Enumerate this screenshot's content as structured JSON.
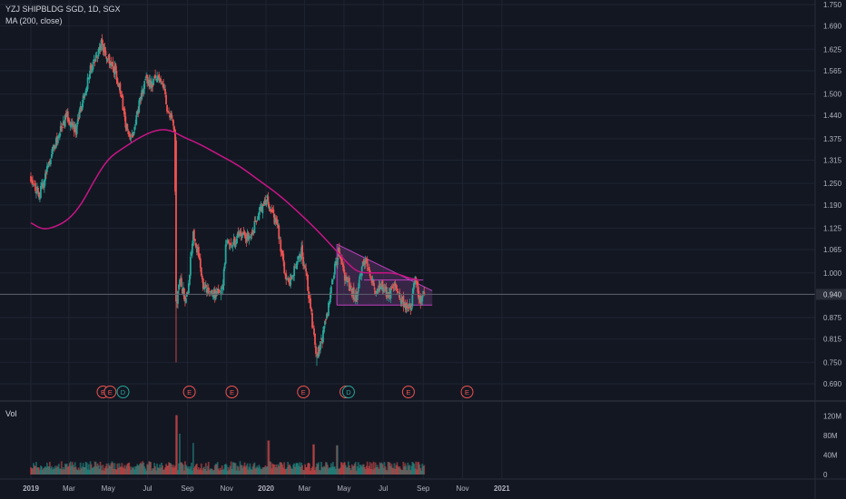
{
  "legend": {
    "symbol_line": "YZJ SHIPBLDG SGD, 1D, SGX",
    "indicator_line": "MA (200, close)",
    "volume_label": "Vol"
  },
  "colors": {
    "background": "#131722",
    "grid": "#1f2433",
    "up": "#26a69a",
    "down": "#ef5350",
    "ma": "#c71585",
    "pattern_fill": "#7b3f8a",
    "pattern_line": "#c040c0",
    "axis_text": "#b2b5be",
    "hline": "#5d606b"
  },
  "chart_data": {
    "type": "candlestick",
    "title": "YZJ SHIPBLDG SGD, 1D, SGX",
    "x_tick_labels": [
      "2019",
      "Mar",
      "May",
      "Jul",
      "Sep",
      "Nov",
      "2020",
      "Mar",
      "May",
      "Jul",
      "Sep",
      "Nov",
      "2021"
    ],
    "x_tick_dates": [
      "2019-01-01",
      "2019-03-01",
      "2019-05-01",
      "2019-07-01",
      "2019-09-01",
      "2019-11-01",
      "2020-01-01",
      "2020-03-01",
      "2020-05-01",
      "2020-07-01",
      "2020-09-01",
      "2020-11-01",
      "2021-01-01"
    ],
    "y_tick_labels": [
      "1.750",
      "1.690",
      "1.625",
      "1.565",
      "1.500",
      "1.440",
      "1.375",
      "1.315",
      "1.250",
      "1.190",
      "1.125",
      "1.065",
      "1.000",
      "0.940",
      "0.875",
      "0.815",
      "0.750",
      "0.690"
    ],
    "ylim": [
      0.69,
      1.75
    ],
    "price_path": [
      [
        "2019-01-01",
        1.27
      ],
      [
        "2019-01-08",
        1.24
      ],
      [
        "2019-01-15",
        1.22
      ],
      [
        "2019-01-22",
        1.26
      ],
      [
        "2019-02-01",
        1.33
      ],
      [
        "2019-02-12",
        1.38
      ],
      [
        "2019-02-25",
        1.44
      ],
      [
        "2019-03-05",
        1.42
      ],
      [
        "2019-03-12",
        1.4
      ],
      [
        "2019-03-20",
        1.46
      ],
      [
        "2019-04-01",
        1.56
      ],
      [
        "2019-04-12",
        1.6
      ],
      [
        "2019-04-20",
        1.64
      ],
      [
        "2019-04-28",
        1.61
      ],
      [
        "2019-05-06",
        1.59
      ],
      [
        "2019-05-14",
        1.55
      ],
      [
        "2019-05-22",
        1.48
      ],
      [
        "2019-06-01",
        1.38
      ],
      [
        "2019-06-08",
        1.39
      ],
      [
        "2019-06-18",
        1.47
      ],
      [
        "2019-06-28",
        1.54
      ],
      [
        "2019-07-08",
        1.53
      ],
      [
        "2019-07-18",
        1.55
      ],
      [
        "2019-07-25",
        1.53
      ],
      [
        "2019-08-01",
        1.46
      ],
      [
        "2019-08-08",
        1.42
      ],
      [
        "2019-08-12",
        1.38
      ],
      [
        "2019-08-15",
        0.9
      ],
      [
        "2019-08-20",
        0.98
      ],
      [
        "2019-08-28",
        0.93
      ],
      [
        "2019-09-02",
        0.96
      ],
      [
        "2019-09-10",
        1.12
      ],
      [
        "2019-09-18",
        1.05
      ],
      [
        "2019-09-26",
        0.96
      ],
      [
        "2019-10-05",
        0.95
      ],
      [
        "2019-10-15",
        0.94
      ],
      [
        "2019-10-25",
        0.95
      ],
      [
        "2019-11-01",
        1.1
      ],
      [
        "2019-11-12",
        1.08
      ],
      [
        "2019-11-22",
        1.11
      ],
      [
        "2019-12-02",
        1.1
      ],
      [
        "2019-12-12",
        1.12
      ],
      [
        "2019-12-22",
        1.17
      ],
      [
        "2020-01-01",
        1.21
      ],
      [
        "2020-01-10",
        1.17
      ],
      [
        "2020-01-20",
        1.12
      ],
      [
        "2020-01-28",
        1.02
      ],
      [
        "2020-02-05",
        0.97
      ],
      [
        "2020-02-15",
        1.01
      ],
      [
        "2020-02-25",
        1.06
      ],
      [
        "2020-03-05",
        0.97
      ],
      [
        "2020-03-12",
        0.87
      ],
      [
        "2020-03-19",
        0.76
      ],
      [
        "2020-03-26",
        0.8
      ],
      [
        "2020-04-05",
        0.88
      ],
      [
        "2020-04-15",
        1.0
      ],
      [
        "2020-04-22",
        1.06
      ],
      [
        "2020-04-30",
        1.0
      ],
      [
        "2020-05-10",
        0.96
      ],
      [
        "2020-05-20",
        0.93
      ],
      [
        "2020-06-01",
        1.04
      ],
      [
        "2020-06-08",
        1.01
      ],
      [
        "2020-06-18",
        0.95
      ],
      [
        "2020-06-28",
        0.97
      ],
      [
        "2020-07-08",
        0.93
      ],
      [
        "2020-07-18",
        0.96
      ],
      [
        "2020-07-28",
        0.93
      ],
      [
        "2020-08-05",
        0.91
      ],
      [
        "2020-08-12",
        0.9
      ],
      [
        "2020-08-20",
        0.98
      ],
      [
        "2020-08-27",
        0.92
      ],
      [
        "2020-09-03",
        0.94
      ]
    ],
    "ma_200": [
      [
        "2019-01-01",
        1.14
      ],
      [
        "2019-01-20",
        1.12
      ],
      [
        "2019-02-10",
        1.13
      ],
      [
        "2019-03-01",
        1.15
      ],
      [
        "2019-03-20",
        1.19
      ],
      [
        "2019-04-10",
        1.26
      ],
      [
        "2019-05-01",
        1.32
      ],
      [
        "2019-05-25",
        1.35
      ],
      [
        "2019-06-20",
        1.38
      ],
      [
        "2019-07-15",
        1.4
      ],
      [
        "2019-08-05",
        1.4
      ],
      [
        "2019-08-25",
        1.38
      ],
      [
        "2019-09-20",
        1.36
      ],
      [
        "2019-10-20",
        1.33
      ],
      [
        "2019-11-20",
        1.3
      ],
      [
        "2019-12-20",
        1.26
      ],
      [
        "2020-01-20",
        1.22
      ],
      [
        "2020-02-20",
        1.17
      ],
      [
        "2020-03-20",
        1.12
      ],
      [
        "2020-04-20",
        1.06
      ],
      [
        "2020-05-10",
        1.02
      ],
      [
        "2020-05-25",
        1.0
      ],
      [
        "2020-06-20",
        1.0
      ],
      [
        "2020-07-20",
        1.0
      ],
      [
        "2020-08-10",
        0.985
      ],
      [
        "2020-08-25",
        0.98
      ]
    ],
    "horizontal_line": 0.94,
    "current_price": 0.94,
    "pattern": {
      "type": "descending-triangle",
      "top_start": [
        "2020-04-20",
        1.08
      ],
      "top_end": [
        "2020-09-15",
        0.95
      ],
      "bottom_start": [
        "2020-04-20",
        0.91
      ],
      "bottom_end": [
        "2020-09-15",
        0.91
      ],
      "resistance_start": [
        "2020-06-01",
        0.98
      ],
      "resistance_end": [
        "2020-09-01",
        0.98
      ]
    },
    "event_markers": [
      {
        "date": "2019-04-23",
        "label": "E"
      },
      {
        "date": "2019-05-04",
        "label": "E"
      },
      {
        "date": "2019-05-24",
        "label": "D"
      },
      {
        "date": "2019-09-04",
        "label": "E"
      },
      {
        "date": "2019-11-09",
        "label": "E"
      },
      {
        "date": "2020-02-28",
        "label": "E"
      },
      {
        "date": "2020-05-04",
        "label": "E"
      },
      {
        "date": "2020-05-08",
        "label": "D"
      },
      {
        "date": "2020-08-09",
        "label": "E"
      },
      {
        "date": "2020-11-08",
        "label": "E"
      }
    ],
    "volume": {
      "label": "Vol",
      "y_tick_labels": [
        "120M",
        "80M",
        "40M",
        "0"
      ],
      "ylim": [
        0,
        130
      ],
      "unit": "M",
      "spikes": [
        [
          "2019-08-15",
          122
        ],
        [
          "2019-08-20",
          84
        ],
        [
          "2019-09-10",
          65
        ],
        [
          "2020-01-05",
          70
        ],
        [
          "2020-03-15",
          62
        ],
        [
          "2020-04-20",
          60
        ]
      ],
      "typical": 22
    }
  }
}
